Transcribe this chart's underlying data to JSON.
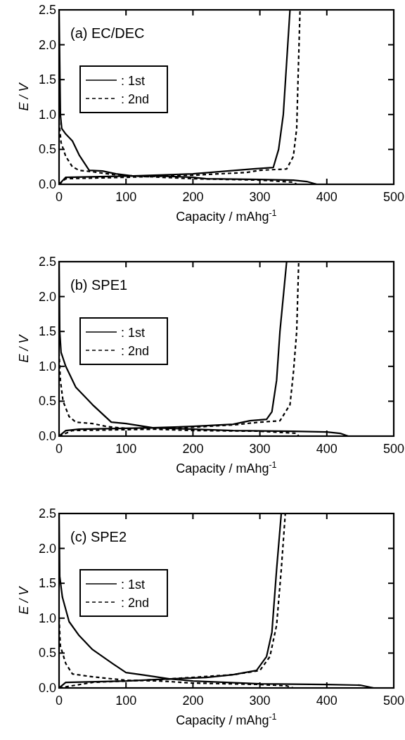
{
  "chart_data": [
    {
      "type": "line",
      "title": "(a) EC/DEC",
      "xlabel": "Capacity / mAhg$^{-1}$",
      "ylabel": "E / V",
      "xlim": [
        0,
        500
      ],
      "ylim": [
        0,
        2.5
      ],
      "xticks": [
        0,
        100,
        200,
        300,
        400,
        500
      ],
      "yticks": [
        {
          "value": 0,
          "label": "0.0"
        },
        {
          "value": 0.5,
          "label": "0.5"
        },
        {
          "value": 1,
          "label": "1.0"
        },
        {
          "value": 1.5,
          "label": "1.5"
        },
        {
          "value": 2,
          "label": "2.0"
        },
        {
          "value": 2.5,
          "label": "2.5"
        }
      ],
      "legend": "top left",
      "series": [
        {
          "name": ": 1st",
          "color": "#000000",
          "line_style": "solid",
          "x": [
            0,
            2,
            4,
            10,
            20,
            30,
            45,
            65,
            85,
            110,
            150,
            200,
            220,
            300,
            350,
            370,
            385,
            null,
            0,
            10,
            110,
            200,
            290,
            320,
            328,
            335,
            345
          ],
          "values": [
            2.5,
            1.0,
            0.8,
            0.72,
            0.62,
            0.42,
            0.2,
            0.19,
            0.15,
            0.12,
            0.12,
            0.1,
            0.08,
            0.07,
            0.06,
            0.04,
            0,
            null,
            0,
            0.1,
            0.12,
            0.15,
            0.22,
            0.24,
            0.5,
            1.0,
            2.5
          ]
        },
        {
          "name": ": 2nd",
          "color": "#000000",
          "line_style": "dashed",
          "x": [
            0,
            3,
            10,
            20,
            30,
            50,
            80,
            110,
            200,
            300,
            350,
            355,
            null,
            0,
            10,
            100,
            200,
            280,
            300,
            340,
            350,
            355,
            357,
            360
          ],
          "values": [
            0.9,
            0.6,
            0.4,
            0.25,
            0.2,
            0.18,
            0.14,
            0.12,
            0.08,
            0.06,
            0.03,
            0,
            null,
            0,
            0.08,
            0.1,
            0.13,
            0.17,
            0.2,
            0.22,
            0.4,
            0.8,
            1.5,
            2.5
          ]
        }
      ]
    },
    {
      "type": "line",
      "title": "(b) SPE1",
      "xlabel": "Capacity / mAhg$^{-1}$",
      "ylabel": "E / V",
      "xlim": [
        0,
        500
      ],
      "ylim": [
        0,
        2.5
      ],
      "xticks": [
        0,
        100,
        200,
        300,
        400,
        500
      ],
      "yticks": [
        {
          "value": 0,
          "label": "0.0"
        },
        {
          "value": 0.5,
          "label": "0.5"
        },
        {
          "value": 1,
          "label": "1.0"
        },
        {
          "value": 1.5,
          "label": "1.5"
        },
        {
          "value": 2,
          "label": "2.0"
        },
        {
          "value": 2.5,
          "label": "2.5"
        }
      ],
      "legend": "top left",
      "series": [
        {
          "name": ": 1st",
          "color": "#000000",
          "line_style": "solid",
          "x": [
            0,
            1,
            3,
            10,
            25,
            50,
            78,
            100,
            140,
            200,
            260,
            350,
            400,
            420,
            432,
            null,
            0,
            10,
            30,
            140,
            200,
            260,
            285,
            310,
            318,
            325,
            330,
            340
          ],
          "values": [
            2.5,
            1.5,
            1.2,
            1.0,
            0.7,
            0.45,
            0.2,
            0.18,
            0.12,
            0.1,
            0.08,
            0.07,
            0.06,
            0.04,
            0,
            null,
            0,
            0.08,
            0.1,
            0.12,
            0.14,
            0.17,
            0.22,
            0.24,
            0.35,
            0.8,
            1.5,
            2.5
          ]
        },
        {
          "name": ": 2nd",
          "color": "#000000",
          "line_style": "dashed",
          "x": [
            0,
            2,
            6,
            15,
            25,
            50,
            70,
            100,
            140,
            200,
            300,
            355,
            358,
            null,
            0,
            20,
            150,
            260,
            300,
            330,
            345,
            350,
            355,
            358
          ],
          "values": [
            1.2,
            0.8,
            0.5,
            0.28,
            0.2,
            0.18,
            0.14,
            0.11,
            0.1,
            0.08,
            0.07,
            0.04,
            0,
            null,
            0,
            0.08,
            0.1,
            0.16,
            0.2,
            0.22,
            0.45,
            0.9,
            1.5,
            2.5
          ]
        }
      ]
    },
    {
      "type": "line",
      "title": "(c) SPE2",
      "xlabel": "Capacity / mAhg$^{-1}$",
      "ylabel": "E / V",
      "xlim": [
        0,
        500
      ],
      "ylim": [
        0,
        2.5
      ],
      "xticks": [
        0,
        100,
        200,
        300,
        400,
        500
      ],
      "yticks": [
        {
          "value": 0,
          "label": "0.0"
        },
        {
          "value": 0.5,
          "label": "0.5"
        },
        {
          "value": 1,
          "label": "1.0"
        },
        {
          "value": 1.5,
          "label": "1.5"
        },
        {
          "value": 2,
          "label": "2.0"
        },
        {
          "value": 2.5,
          "label": "2.5"
        }
      ],
      "legend": "top left",
      "series": [
        {
          "name": ": 1st",
          "color": "#000000",
          "line_style": "solid",
          "x": [
            0,
            1,
            5,
            15,
            30,
            50,
            80,
            100,
            130,
            165,
            200,
            300,
            400,
            450,
            470,
            null,
            0,
            10,
            100,
            165,
            220,
            260,
            295,
            310,
            318,
            325,
            332
          ],
          "values": [
            2.5,
            1.6,
            1.3,
            0.95,
            0.75,
            0.55,
            0.35,
            0.22,
            0.18,
            0.13,
            0.1,
            0.06,
            0.05,
            0.04,
            0,
            null,
            0,
            0.08,
            0.1,
            0.13,
            0.15,
            0.19,
            0.25,
            0.45,
            0.8,
            1.7,
            2.5
          ]
        },
        {
          "name": ": 2nd",
          "color": "#000000",
          "line_style": "dashed",
          "x": [
            0,
            2,
            10,
            20,
            50,
            100,
            150,
            200,
            300,
            340,
            350,
            null,
            0,
            50,
            150,
            260,
            300,
            315,
            325,
            332,
            338
          ],
          "values": [
            1.0,
            0.6,
            0.35,
            0.2,
            0.16,
            0.11,
            0.1,
            0.07,
            0.05,
            0.03,
            0,
            null,
            0,
            0.08,
            0.12,
            0.19,
            0.25,
            0.45,
            0.9,
            1.7,
            2.5
          ]
        }
      ]
    }
  ]
}
